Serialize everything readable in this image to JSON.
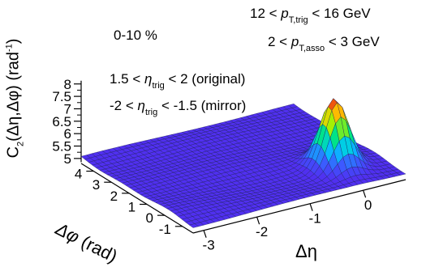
{
  "chart_data": {
    "type": "surface3d",
    "title": "",
    "xlabel": "Δη",
    "ylabel": "Δφ (rad)",
    "zlabel": "C2(Δη,Δφ) (rad-1)",
    "x_ticks": [
      "-3",
      "-2",
      "-1",
      "0"
    ],
    "y_ticks": [
      "-1",
      "0",
      "1",
      "2",
      "3",
      "4"
    ],
    "z_ticks": [
      "5",
      "5.5",
      "6",
      "6.5",
      "7",
      "7.5",
      "8"
    ],
    "xlim": [
      -3.2,
      0.8
    ],
    "ylim": [
      -1.6,
      4.7
    ],
    "zlim": [
      4.8,
      8.2
    ],
    "baseline_value": 5.05,
    "peak": {
      "x": 0.0,
      "y": 0.0,
      "value": 7.75
    },
    "annotations": [
      "0-10 %",
      "1.5 < η_trig < 2 (original)",
      "-2 < η_trig < -1.5 (mirror)",
      "12 < p_T,trig < 16 GeV",
      "2 < p_T,asso < 3 GeV"
    ]
  },
  "text": {
    "centrality": "0-10 %",
    "eta1": {
      "pre": "1.5 < ",
      "sym": "η",
      "sub": "trig",
      "post": " < 2 (original)"
    },
    "eta2": {
      "pre": "-2 < ",
      "sym": "η",
      "sub": "trig",
      "post": " < -1.5 (mirror)"
    },
    "pt1": {
      "pre": "12 < ",
      "sym": "p",
      "sub": "T,trig",
      "post": " < 16 GeV"
    },
    "pt2": {
      "pre": "2 < ",
      "sym": "p",
      "sub": "T,asso",
      "post": " < 3 GeV"
    },
    "zlabel": {
      "pre": "C",
      "sub": "2",
      "mid": "(Δη,Δφ) (rad",
      "sup": "-1",
      "post": ")"
    },
    "ylabel": {
      "sym": "Δφ",
      "post": " (rad)"
    },
    "xlabel": "Δη"
  }
}
